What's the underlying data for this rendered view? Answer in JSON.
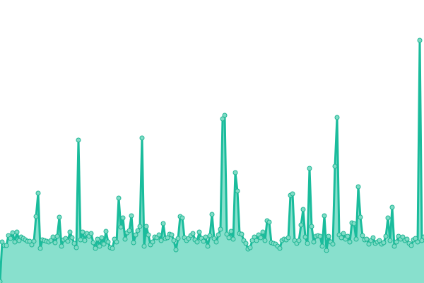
{
  "chart_data": {
    "type": "area",
    "title": "",
    "xlabel": "",
    "ylabel": "",
    "axes_visible": false,
    "grid": false,
    "legend": "none",
    "ylim": [
      0,
      400
    ],
    "colors": {
      "line": "#1abc9c",
      "fill": "#88e0cd",
      "marker_fill": "#7fdcc6",
      "marker_stroke": "#1fb594"
    },
    "series": [
      {
        "values": [
          2,
          58,
          53,
          53,
          67,
          63,
          71,
          58,
          72,
          60,
          65,
          63,
          61,
          59,
          59,
          54,
          59,
          94,
          127,
          49,
          61,
          60,
          59,
          58,
          60,
          65,
          57,
          66,
          93,
          52,
          61,
          63,
          59,
          72,
          64,
          56,
          50,
          202,
          61,
          72,
          60,
          70,
          66,
          70,
          57,
          49,
          62,
          52,
          64,
          55,
          73,
          58,
          50,
          49,
          62,
          58,
          120,
          79,
          92,
          62,
          71,
          74,
          95,
          57,
          68,
          74,
          80,
          205,
          52,
          80,
          68,
          54,
          58,
          65,
          64,
          68,
          60,
          84,
          63,
          64,
          69,
          68,
          60,
          47,
          63,
          94,
          92,
          64,
          60,
          63,
          67,
          70,
          61,
          58,
          72,
          63,
          59,
          65,
          52,
          67,
          97,
          63,
          58,
          68,
          76,
          232,
          237,
          69,
          64,
          73,
          62,
          156,
          130,
          70,
          69,
          60,
          56,
          48,
          50,
          60,
          65,
          60,
          68,
          64,
          72,
          60,
          88,
          86,
          57,
          56,
          55,
          52,
          49,
          60,
          62,
          61,
          64,
          124,
          126,
          60,
          56,
          60,
          82,
          104,
          65,
          56,
          162,
          80,
          58,
          66,
          67,
          66,
          52,
          95,
          46,
          66,
          58,
          55,
          165,
          234,
          68,
          64,
          70,
          62,
          66,
          58,
          85,
          84,
          62,
          136,
          93,
          67,
          61,
          62,
          55,
          60,
          64,
          56,
          58,
          60,
          55,
          57,
          66,
          92,
          60,
          107,
          52,
          58,
          66,
          62,
          65,
          60,
          62,
          56,
          53,
          61,
          63,
          58,
          343,
          60,
          65
        ]
      }
    ]
  }
}
